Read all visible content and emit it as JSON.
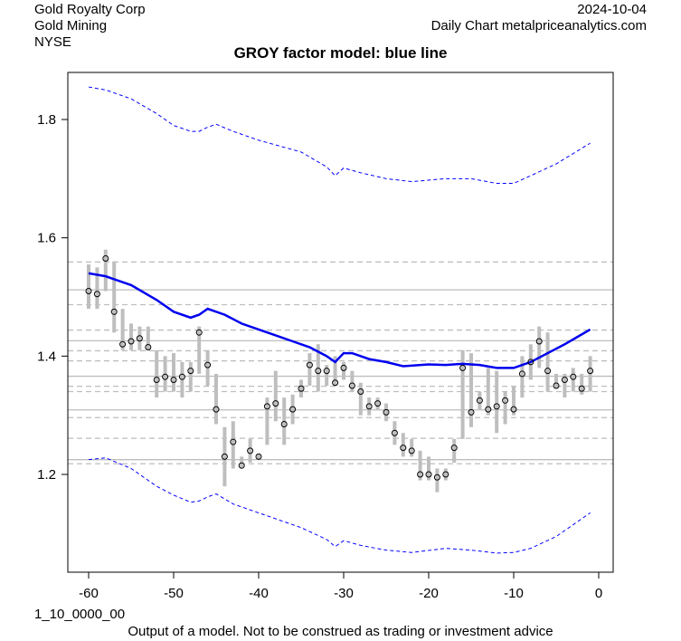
{
  "header": {
    "company": "Gold Royalty Corp",
    "sector": "Gold Mining",
    "exchange": "NYSE",
    "date": "2024-10-04",
    "source": "Daily Chart metalpriceanalytics.com"
  },
  "footer": {
    "code": "1_10_0000_00",
    "disclaimer": "Output of a model. Not to be construed as trading or investment advice"
  },
  "colors": {
    "model": "#0000EE",
    "band": "#0000FF",
    "bars": "#BEBEBE",
    "ref": "#BEBEBE"
  },
  "chart_data": {
    "type": "line",
    "title": "GROY factor model: blue line",
    "xlabel": "",
    "ylabel": "",
    "xlim": [
      -62.5,
      1.5
    ],
    "ylim": [
      1.03,
      1.88
    ],
    "xticks": [
      -60,
      -50,
      -40,
      -30,
      -20,
      -10,
      0
    ],
    "yticks": [
      1.2,
      1.4,
      1.6,
      1.8
    ],
    "ytick_labels": [
      "1.2",
      "1.4",
      "1.6",
      "1.8"
    ],
    "grid": false,
    "observed": {
      "x": [
        -60,
        -59,
        -58,
        -57,
        -56,
        -55,
        -54,
        -53,
        -52,
        -51,
        -50,
        -49,
        -48,
        -47,
        -46,
        -45,
        -44,
        -43,
        -42,
        -41,
        -40,
        -39,
        -38,
        -37,
        -36,
        -35,
        -34,
        -33,
        -32,
        -31,
        -30,
        -29,
        -28,
        -27,
        -26,
        -25,
        -24,
        -23,
        -22,
        -21,
        -20,
        -19,
        -18,
        -17,
        -16,
        -15,
        -14,
        -13,
        -12,
        -11,
        -10,
        -9,
        -8,
        -7,
        -6,
        -5,
        -4,
        -3,
        -2,
        -1
      ],
      "close": [
        1.51,
        1.505,
        1.565,
        1.475,
        1.42,
        1.425,
        1.43,
        1.415,
        1.36,
        1.365,
        1.36,
        1.365,
        1.375,
        1.44,
        1.385,
        1.31,
        1.23,
        1.255,
        1.215,
        1.24,
        1.23,
        1.315,
        1.32,
        1.285,
        1.31,
        1.345,
        1.385,
        1.375,
        1.375,
        1.355,
        1.38,
        1.35,
        1.34,
        1.315,
        1.32,
        1.305,
        1.27,
        1.245,
        1.24,
        1.2,
        1.2,
        1.195,
        1.2,
        1.245,
        1.38,
        1.305,
        1.325,
        1.31,
        1.315,
        1.325,
        1.31,
        1.37,
        1.39,
        1.425,
        1.375,
        1.35,
        1.36,
        1.365,
        1.345,
        1.375
      ],
      "low": [
        1.48,
        1.48,
        1.51,
        1.44,
        1.41,
        1.41,
        1.41,
        1.41,
        1.33,
        1.34,
        1.34,
        1.33,
        1.34,
        1.37,
        1.35,
        1.285,
        1.18,
        1.21,
        1.21,
        1.22,
        1.225,
        1.25,
        1.29,
        1.25,
        1.285,
        1.33,
        1.35,
        1.34,
        1.35,
        1.35,
        1.36,
        1.34,
        1.3,
        1.3,
        1.31,
        1.29,
        1.25,
        1.23,
        1.23,
        1.19,
        1.19,
        1.17,
        1.19,
        1.22,
        1.26,
        1.28,
        1.31,
        1.3,
        1.27,
        1.285,
        1.3,
        1.33,
        1.36,
        1.38,
        1.34,
        1.345,
        1.33,
        1.34,
        1.335,
        1.34
      ],
      "high": [
        1.555,
        1.55,
        1.58,
        1.56,
        1.48,
        1.455,
        1.45,
        1.45,
        1.41,
        1.4,
        1.405,
        1.39,
        1.39,
        1.45,
        1.41,
        1.37,
        1.28,
        1.29,
        1.23,
        1.26,
        1.235,
        1.33,
        1.375,
        1.33,
        1.335,
        1.36,
        1.405,
        1.42,
        1.385,
        1.4,
        1.39,
        1.375,
        1.355,
        1.33,
        1.33,
        1.32,
        1.29,
        1.27,
        1.26,
        1.24,
        1.23,
        1.21,
        1.21,
        1.26,
        1.41,
        1.405,
        1.34,
        1.38,
        1.375,
        1.34,
        1.35,
        1.4,
        1.42,
        1.45,
        1.44,
        1.37,
        1.37,
        1.38,
        1.37,
        1.4
      ]
    },
    "series": [
      {
        "name": "model",
        "x": [
          -60,
          -58,
          -55,
          -52,
          -50,
          -48,
          -47,
          -46,
          -44,
          -42,
          -40,
          -38,
          -36,
          -34,
          -32,
          -31,
          -30,
          -29,
          -27,
          -25,
          -23,
          -20,
          -18,
          -16,
          -14,
          -12,
          -10,
          -8,
          -6,
          -4,
          -1
        ],
        "values": [
          1.54,
          1.535,
          1.52,
          1.495,
          1.475,
          1.465,
          1.47,
          1.48,
          1.47,
          1.455,
          1.445,
          1.435,
          1.425,
          1.415,
          1.4,
          1.39,
          1.405,
          1.405,
          1.395,
          1.39,
          1.383,
          1.386,
          1.385,
          1.387,
          1.385,
          1.38,
          1.38,
          1.39,
          1.405,
          1.42,
          1.445
        ]
      },
      {
        "name": "upper band",
        "x": [
          -60,
          -58,
          -55,
          -52,
          -50,
          -48,
          -47,
          -46,
          -45,
          -43,
          -40,
          -35,
          -32,
          -31,
          -30,
          -28,
          -25,
          -22,
          -18,
          -15,
          -12,
          -10,
          -8,
          -5,
          -1
        ],
        "values": [
          1.855,
          1.85,
          1.835,
          1.81,
          1.79,
          1.78,
          1.78,
          1.787,
          1.792,
          1.78,
          1.765,
          1.745,
          1.72,
          1.705,
          1.718,
          1.71,
          1.7,
          1.695,
          1.7,
          1.7,
          1.692,
          1.692,
          1.705,
          1.725,
          1.76
        ]
      },
      {
        "name": "lower band",
        "x": [
          -60,
          -58,
          -55,
          -52,
          -50,
          -48,
          -47,
          -46,
          -45,
          -43,
          -40,
          -35,
          -32,
          -31,
          -30,
          -28,
          -25,
          -22,
          -18,
          -15,
          -12,
          -10,
          -8,
          -5,
          -1
        ],
        "values": [
          1.225,
          1.228,
          1.21,
          1.18,
          1.165,
          1.153,
          1.155,
          1.162,
          1.167,
          1.15,
          1.135,
          1.11,
          1.09,
          1.078,
          1.088,
          1.08,
          1.072,
          1.068,
          1.075,
          1.072,
          1.067,
          1.068,
          1.075,
          1.095,
          1.135
        ]
      }
    ],
    "reference_lines": {
      "solid": [
        1.512,
        1.426,
        1.366,
        1.309,
        1.225
      ],
      "dashed": [
        1.559,
        1.487,
        1.444,
        1.409,
        1.392,
        1.349,
        1.34,
        1.296,
        1.261,
        1.218
      ]
    }
  }
}
